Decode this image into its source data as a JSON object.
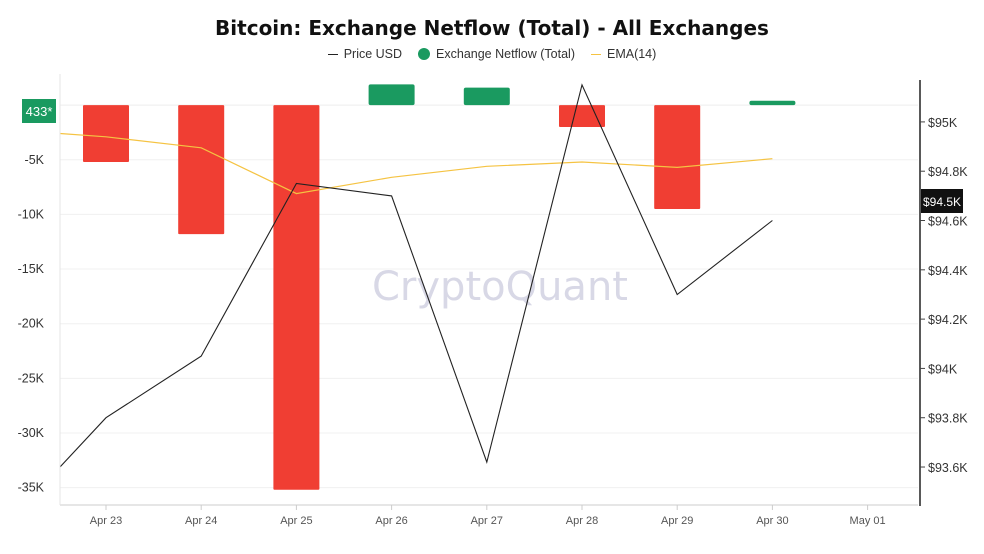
{
  "chart_data": {
    "type": "bar",
    "title": "Bitcoin: Exchange Netflow (Total) - All Exchanges",
    "categories": [
      "Apr 23",
      "Apr 24",
      "Apr 25",
      "Apr 26",
      "Apr 27",
      "Apr 28",
      "Apr 29",
      "Apr 30",
      "May 01"
    ],
    "series": [
      {
        "name": "Exchange Netflow (Total)",
        "type": "bar",
        "values": [
          -5200,
          -11800,
          -35200,
          1900,
          1600,
          -2000,
          -9500,
          400,
          null
        ]
      },
      {
        "name": "Price USD",
        "type": "line",
        "axis": "right",
        "values": [
          93600,
          93800,
          94050,
          94750,
          94700,
          93620,
          95150,
          94300,
          94600
        ]
      },
      {
        "name": "EMA(14)",
        "type": "line",
        "values": [
          -2600,
          -2900,
          -3900,
          -8100,
          -6600,
          -5600,
          -5200,
          -5700,
          -4900
        ]
      }
    ],
    "left_axis": {
      "ticks": [
        "-5K",
        "-10K",
        "-15K",
        "-20K",
        "-25K",
        "-30K",
        "-35K"
      ],
      "range": [
        -36500,
        2300
      ]
    },
    "right_axis": {
      "ticks": [
        "$95K",
        "$94.8K",
        "$94.6K",
        "$94.4K",
        "$94.2K",
        "$94K",
        "$93.8K",
        "$93.6K"
      ],
      "range": [
        93450,
        95170
      ]
    },
    "last_netflow_label": "433*",
    "last_price_label": "$94.5K",
    "colors": {
      "positive": "#1a9a60",
      "negative": "#f03e33",
      "price": "#222222",
      "ema": "#f5c342"
    },
    "legend_position": "top-center",
    "grid": true
  },
  "watermark": "CryptoQuant"
}
